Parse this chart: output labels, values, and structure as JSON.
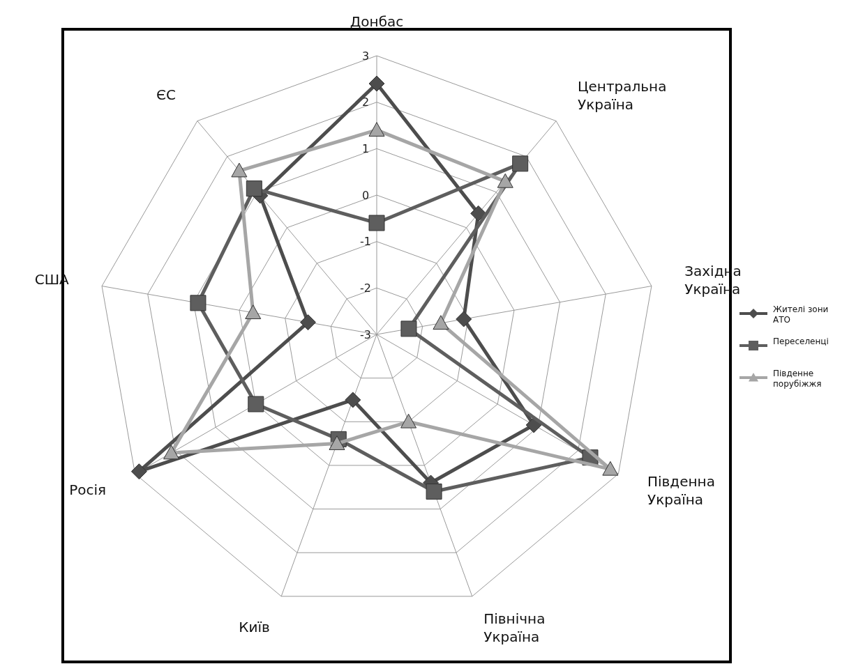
{
  "chart_data": {
    "type": "radar",
    "categories": [
      "Донбас",
      "Центральна Україна",
      "Західна Україна",
      "Південна Україна",
      "Північна Україна",
      "Київ",
      "Росія",
      "США",
      "ЄС"
    ],
    "ylim": [
      -3,
      3
    ],
    "yticks": [
      -3,
      -2,
      -1,
      0,
      1,
      2,
      3
    ],
    "grid": true,
    "legend": "right",
    "line_style": "solid",
    "series": [
      {
        "name": "Жителі зони АТО",
        "color": "#4d4d4d",
        "marker": "diamond",
        "values": [
          2.4,
          0.4,
          -1.1,
          0.9,
          0.4,
          -1.5,
          2.9,
          -1.5,
          0.9
        ]
      },
      {
        "name": "Переселенці",
        "color": "#5e5e5e",
        "marker": "square",
        "values": [
          -0.6,
          1.8,
          -2.3,
          2.3,
          0.6,
          -0.6,
          0,
          0.9,
          1.1
        ]
      },
      {
        "name": "Південне порубіжжя",
        "color": "#a6a6a6",
        "marker": "triangle",
        "values": [
          1.4,
          1.3,
          -1.6,
          2.8,
          -1,
          -0.5,
          2.1,
          -0.3,
          1.6
        ]
      }
    ]
  }
}
